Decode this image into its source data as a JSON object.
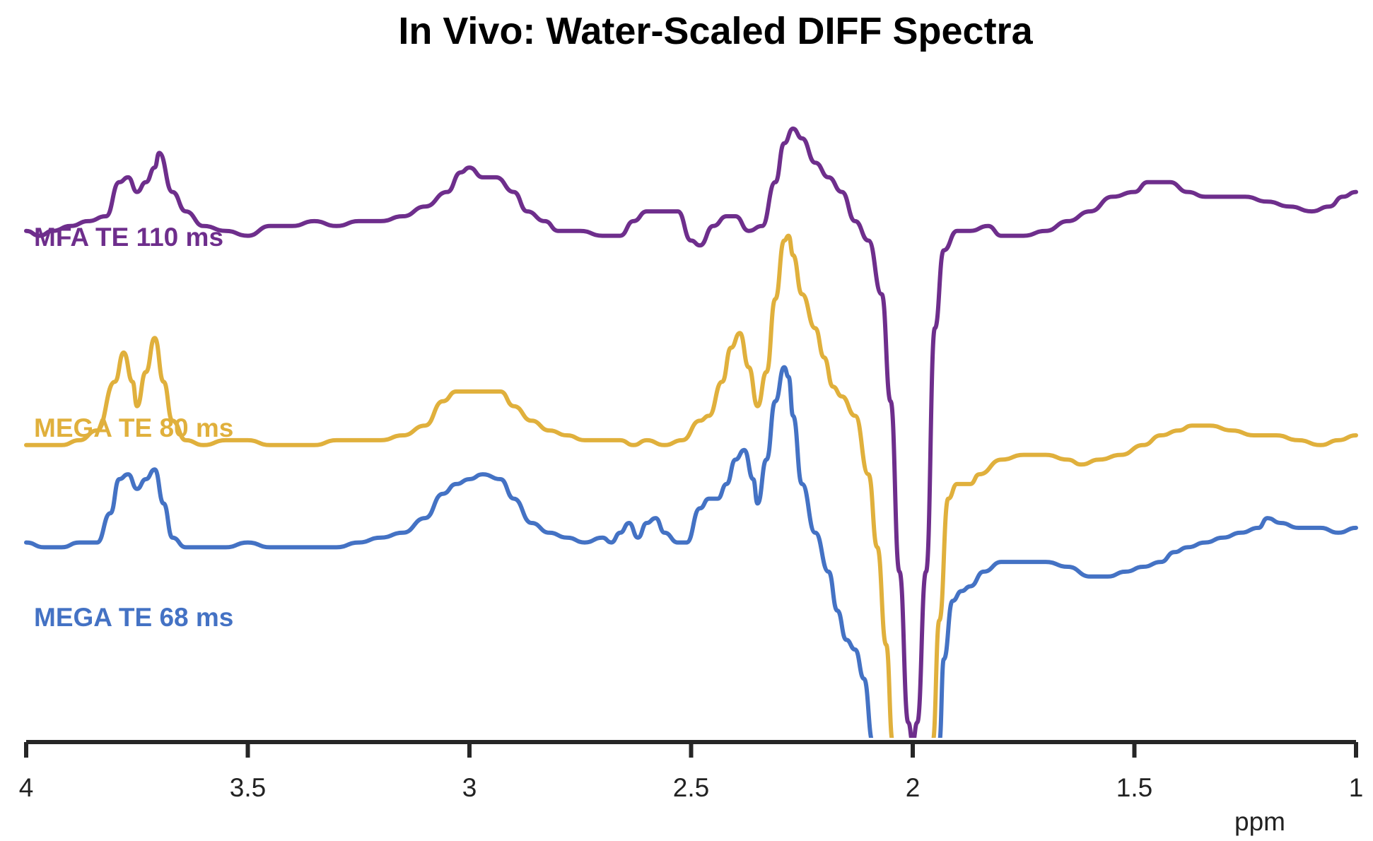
{
  "chart_data": {
    "type": "line",
    "title": "In Vivo: Water-Scaled DIFF Spectra",
    "xlabel": "ppm",
    "ylabel": "",
    "x_reversed": true,
    "xlim": [
      4,
      1
    ],
    "ylim": [
      -0.05,
      1.3
    ],
    "xticks": [
      4,
      3.5,
      3,
      2.5,
      2,
      1.5,
      1
    ],
    "xtick_labels": [
      "4",
      "3.5",
      "3",
      "2.5",
      "2",
      "1.5",
      "1"
    ],
    "grid": false,
    "legend": "inline-left",
    "series": [
      {
        "name": "MFA TE 110 ms",
        "color": "#6E2E8C",
        "points": [
          [
            4.0,
            1.0
          ],
          [
            3.97,
            0.99
          ],
          [
            3.94,
            1.0
          ],
          [
            3.9,
            1.01
          ],
          [
            3.86,
            1.02
          ],
          [
            3.82,
            1.03
          ],
          [
            3.79,
            1.1
          ],
          [
            3.77,
            1.11
          ],
          [
            3.75,
            1.08
          ],
          [
            3.73,
            1.1
          ],
          [
            3.71,
            1.13
          ],
          [
            3.7,
            1.16
          ],
          [
            3.67,
            1.08
          ],
          [
            3.64,
            1.04
          ],
          [
            3.6,
            1.01
          ],
          [
            3.55,
            1.0
          ],
          [
            3.5,
            0.99
          ],
          [
            3.45,
            1.01
          ],
          [
            3.4,
            1.01
          ],
          [
            3.35,
            1.02
          ],
          [
            3.3,
            1.01
          ],
          [
            3.25,
            1.02
          ],
          [
            3.2,
            1.02
          ],
          [
            3.15,
            1.03
          ],
          [
            3.1,
            1.05
          ],
          [
            3.05,
            1.08
          ],
          [
            3.02,
            1.12
          ],
          [
            3.0,
            1.13
          ],
          [
            2.97,
            1.11
          ],
          [
            2.94,
            1.11
          ],
          [
            2.9,
            1.08
          ],
          [
            2.87,
            1.04
          ],
          [
            2.83,
            1.02
          ],
          [
            2.8,
            1.0
          ],
          [
            2.75,
            1.0
          ],
          [
            2.7,
            0.99
          ],
          [
            2.66,
            0.99
          ],
          [
            2.63,
            1.02
          ],
          [
            2.6,
            1.04
          ],
          [
            2.57,
            1.04
          ],
          [
            2.53,
            1.04
          ],
          [
            2.5,
            0.98
          ],
          [
            2.48,
            0.97
          ],
          [
            2.45,
            1.01
          ],
          [
            2.42,
            1.03
          ],
          [
            2.4,
            1.03
          ],
          [
            2.37,
            1.0
          ],
          [
            2.34,
            1.01
          ],
          [
            2.31,
            1.1
          ],
          [
            2.29,
            1.18
          ],
          [
            2.27,
            1.21
          ],
          [
            2.25,
            1.19
          ],
          [
            2.22,
            1.14
          ],
          [
            2.19,
            1.11
          ],
          [
            2.16,
            1.08
          ],
          [
            2.13,
            1.02
          ],
          [
            2.1,
            0.98
          ],
          [
            2.07,
            0.87
          ],
          [
            2.05,
            0.65
          ],
          [
            2.03,
            0.3
          ],
          [
            2.01,
            -0.01
          ],
          [
            2.0,
            -0.05
          ],
          [
            1.99,
            -0.01
          ],
          [
            1.97,
            0.3
          ],
          [
            1.95,
            0.8
          ],
          [
            1.93,
            0.96
          ],
          [
            1.9,
            1.0
          ],
          [
            1.87,
            1.0
          ],
          [
            1.83,
            1.01
          ],
          [
            1.8,
            0.99
          ],
          [
            1.75,
            0.99
          ],
          [
            1.7,
            1.0
          ],
          [
            1.65,
            1.02
          ],
          [
            1.6,
            1.04
          ],
          [
            1.55,
            1.07
          ],
          [
            1.5,
            1.08
          ],
          [
            1.47,
            1.1
          ],
          [
            1.45,
            1.1
          ],
          [
            1.42,
            1.1
          ],
          [
            1.38,
            1.08
          ],
          [
            1.34,
            1.07
          ],
          [
            1.3,
            1.07
          ],
          [
            1.25,
            1.07
          ],
          [
            1.2,
            1.06
          ],
          [
            1.15,
            1.05
          ],
          [
            1.1,
            1.04
          ],
          [
            1.06,
            1.05
          ],
          [
            1.03,
            1.07
          ],
          [
            1.0,
            1.08
          ]
        ]
      },
      {
        "name": "MEGA TE 80 ms",
        "color": "#E0B03C",
        "points": [
          [
            4.0,
            0.56
          ],
          [
            3.96,
            0.56
          ],
          [
            3.92,
            0.56
          ],
          [
            3.88,
            0.57
          ],
          [
            3.84,
            0.59
          ],
          [
            3.8,
            0.69
          ],
          [
            3.78,
            0.75
          ],
          [
            3.76,
            0.69
          ],
          [
            3.75,
            0.64
          ],
          [
            3.73,
            0.71
          ],
          [
            3.71,
            0.78
          ],
          [
            3.69,
            0.69
          ],
          [
            3.67,
            0.61
          ],
          [
            3.64,
            0.57
          ],
          [
            3.6,
            0.56
          ],
          [
            3.55,
            0.57
          ],
          [
            3.5,
            0.57
          ],
          [
            3.45,
            0.56
          ],
          [
            3.4,
            0.56
          ],
          [
            3.35,
            0.56
          ],
          [
            3.3,
            0.57
          ],
          [
            3.25,
            0.57
          ],
          [
            3.2,
            0.57
          ],
          [
            3.15,
            0.58
          ],
          [
            3.1,
            0.6
          ],
          [
            3.06,
            0.65
          ],
          [
            3.03,
            0.67
          ],
          [
            3.0,
            0.67
          ],
          [
            2.96,
            0.67
          ],
          [
            2.93,
            0.67
          ],
          [
            2.9,
            0.64
          ],
          [
            2.86,
            0.61
          ],
          [
            2.82,
            0.59
          ],
          [
            2.78,
            0.58
          ],
          [
            2.74,
            0.57
          ],
          [
            2.7,
            0.57
          ],
          [
            2.66,
            0.57
          ],
          [
            2.63,
            0.56
          ],
          [
            2.6,
            0.57
          ],
          [
            2.56,
            0.56
          ],
          [
            2.52,
            0.57
          ],
          [
            2.48,
            0.61
          ],
          [
            2.46,
            0.62
          ],
          [
            2.43,
            0.69
          ],
          [
            2.41,
            0.76
          ],
          [
            2.39,
            0.79
          ],
          [
            2.37,
            0.72
          ],
          [
            2.35,
            0.64
          ],
          [
            2.33,
            0.71
          ],
          [
            2.31,
            0.86
          ],
          [
            2.29,
            0.98
          ],
          [
            2.28,
            0.99
          ],
          [
            2.27,
            0.95
          ],
          [
            2.25,
            0.87
          ],
          [
            2.22,
            0.8
          ],
          [
            2.2,
            0.74
          ],
          [
            2.18,
            0.68
          ],
          [
            2.16,
            0.66
          ],
          [
            2.13,
            0.62
          ],
          [
            2.1,
            0.5
          ],
          [
            2.08,
            0.35
          ],
          [
            2.06,
            0.15
          ],
          [
            2.045,
            -0.05
          ],
          [
            1.955,
            -0.05
          ],
          [
            1.94,
            0.2
          ],
          [
            1.92,
            0.45
          ],
          [
            1.9,
            0.48
          ],
          [
            1.87,
            0.48
          ],
          [
            1.85,
            0.5
          ],
          [
            1.8,
            0.53
          ],
          [
            1.75,
            0.54
          ],
          [
            1.7,
            0.54
          ],
          [
            1.65,
            0.53
          ],
          [
            1.62,
            0.52
          ],
          [
            1.58,
            0.53
          ],
          [
            1.53,
            0.54
          ],
          [
            1.48,
            0.56
          ],
          [
            1.44,
            0.58
          ],
          [
            1.4,
            0.59
          ],
          [
            1.37,
            0.6
          ],
          [
            1.33,
            0.6
          ],
          [
            1.28,
            0.59
          ],
          [
            1.23,
            0.58
          ],
          [
            1.18,
            0.58
          ],
          [
            1.13,
            0.57
          ],
          [
            1.08,
            0.56
          ],
          [
            1.04,
            0.57
          ],
          [
            1.0,
            0.58
          ]
        ]
      },
      {
        "name": "MEGA TE 68 ms",
        "color": "#4472C4",
        "points": [
          [
            4.0,
            0.36
          ],
          [
            3.96,
            0.35
          ],
          [
            3.92,
            0.35
          ],
          [
            3.88,
            0.36
          ],
          [
            3.84,
            0.36
          ],
          [
            3.81,
            0.42
          ],
          [
            3.79,
            0.49
          ],
          [
            3.77,
            0.5
          ],
          [
            3.75,
            0.47
          ],
          [
            3.73,
            0.49
          ],
          [
            3.71,
            0.51
          ],
          [
            3.69,
            0.44
          ],
          [
            3.67,
            0.37
          ],
          [
            3.64,
            0.35
          ],
          [
            3.6,
            0.35
          ],
          [
            3.55,
            0.35
          ],
          [
            3.5,
            0.36
          ],
          [
            3.45,
            0.35
          ],
          [
            3.4,
            0.35
          ],
          [
            3.35,
            0.35
          ],
          [
            3.3,
            0.35
          ],
          [
            3.25,
            0.36
          ],
          [
            3.2,
            0.37
          ],
          [
            3.15,
            0.38
          ],
          [
            3.1,
            0.41
          ],
          [
            3.06,
            0.46
          ],
          [
            3.03,
            0.48
          ],
          [
            3.0,
            0.49
          ],
          [
            2.97,
            0.5
          ],
          [
            2.93,
            0.49
          ],
          [
            2.9,
            0.45
          ],
          [
            2.86,
            0.4
          ],
          [
            2.82,
            0.38
          ],
          [
            2.78,
            0.37
          ],
          [
            2.74,
            0.36
          ],
          [
            2.7,
            0.37
          ],
          [
            2.68,
            0.36
          ],
          [
            2.66,
            0.38
          ],
          [
            2.64,
            0.4
          ],
          [
            2.62,
            0.37
          ],
          [
            2.6,
            0.4
          ],
          [
            2.58,
            0.41
          ],
          [
            2.56,
            0.38
          ],
          [
            2.53,
            0.36
          ],
          [
            2.51,
            0.36
          ],
          [
            2.48,
            0.43
          ],
          [
            2.46,
            0.45
          ],
          [
            2.44,
            0.45
          ],
          [
            2.42,
            0.48
          ],
          [
            2.4,
            0.53
          ],
          [
            2.38,
            0.55
          ],
          [
            2.36,
            0.49
          ],
          [
            2.35,
            0.44
          ],
          [
            2.33,
            0.53
          ],
          [
            2.31,
            0.65
          ],
          [
            2.29,
            0.72
          ],
          [
            2.28,
            0.7
          ],
          [
            2.27,
            0.62
          ],
          [
            2.25,
            0.48
          ],
          [
            2.22,
            0.38
          ],
          [
            2.19,
            0.3
          ],
          [
            2.17,
            0.22
          ],
          [
            2.15,
            0.16
          ],
          [
            2.13,
            0.14
          ],
          [
            2.11,
            0.08
          ],
          [
            2.09,
            -0.05
          ],
          [
            1.94,
            -0.05
          ],
          [
            1.93,
            0.12
          ],
          [
            1.91,
            0.24
          ],
          [
            1.89,
            0.26
          ],
          [
            1.87,
            0.27
          ],
          [
            1.84,
            0.3
          ],
          [
            1.8,
            0.32
          ],
          [
            1.75,
            0.32
          ],
          [
            1.7,
            0.32
          ],
          [
            1.65,
            0.31
          ],
          [
            1.6,
            0.29
          ],
          [
            1.56,
            0.29
          ],
          [
            1.52,
            0.3
          ],
          [
            1.48,
            0.31
          ],
          [
            1.44,
            0.32
          ],
          [
            1.41,
            0.34
          ],
          [
            1.38,
            0.35
          ],
          [
            1.34,
            0.36
          ],
          [
            1.3,
            0.37
          ],
          [
            1.26,
            0.38
          ],
          [
            1.22,
            0.39
          ],
          [
            1.2,
            0.41
          ],
          [
            1.17,
            0.4
          ],
          [
            1.13,
            0.39
          ],
          [
            1.08,
            0.39
          ],
          [
            1.04,
            0.38
          ],
          [
            1.0,
            0.39
          ]
        ]
      }
    ]
  }
}
